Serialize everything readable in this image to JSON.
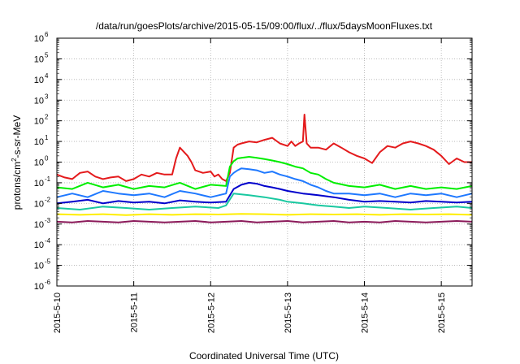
{
  "chart_data": {
    "type": "line",
    "title": "/data/run/goesPlots/archive/2015-05-15/09:00/flux/../flux/5daysMoonFluxes.txt",
    "xlabel": "Coordinated Universal Time (UTC)",
    "ylabel": {
      "base": "protons/cm",
      "sup": "2",
      "rest": "-s-sr-MeV"
    },
    "x_unit": "days since 2015-5-10",
    "xlim": [
      0,
      5.4
    ],
    "ylim_exponent": [
      -6,
      6
    ],
    "y_scale": "log",
    "grid": true,
    "x_ticks": [
      {
        "value": 0,
        "label": "2015-5-10"
      },
      {
        "value": 1,
        "label": "2015-5-11"
      },
      {
        "value": 2,
        "label": "2015-5-12"
      },
      {
        "value": 3,
        "label": "2015-5-13"
      },
      {
        "value": 4,
        "label": "2015-5-14"
      },
      {
        "value": 5,
        "label": "2015-5-15"
      }
    ],
    "y_ticks": [
      {
        "exp": -6,
        "label": "10",
        "sup": "-6"
      },
      {
        "exp": -5,
        "label": "10",
        "sup": "-5"
      },
      {
        "exp": -4,
        "label": "10",
        "sup": "-4"
      },
      {
        "exp": -3,
        "label": "10",
        "sup": "-3"
      },
      {
        "exp": -2,
        "label": "10",
        "sup": "-2"
      },
      {
        "exp": -1,
        "label": "10",
        "sup": "-1"
      },
      {
        "exp": 0,
        "label": "10",
        "sup": "0"
      },
      {
        "exp": 1,
        "label": "10",
        "sup": "1"
      },
      {
        "exp": 2,
        "label": "10",
        "sup": "2"
      },
      {
        "exp": 3,
        "label": "10",
        "sup": "3"
      },
      {
        "exp": 4,
        "label": "10",
        "sup": "4"
      },
      {
        "exp": 5,
        "label": "10",
        "sup": "5"
      },
      {
        "exp": 6,
        "label": "10",
        "sup": "6"
      }
    ],
    "series": [
      {
        "color": "#e41a1c",
        "x": [
          0,
          0.1,
          0.2,
          0.3,
          0.4,
          0.5,
          0.6,
          0.7,
          0.8,
          0.9,
          1.0,
          1.1,
          1.2,
          1.3,
          1.4,
          1.5,
          1.55,
          1.6,
          1.7,
          1.75,
          1.8,
          1.9,
          2.0,
          2.05,
          2.1,
          2.15,
          2.2,
          2.25,
          2.3,
          2.35,
          2.4,
          2.5,
          2.6,
          2.7,
          2.8,
          2.9,
          3.0,
          3.05,
          3.1,
          3.15,
          3.2,
          3.22,
          3.25,
          3.28,
          3.3,
          3.4,
          3.5,
          3.6,
          3.7,
          3.8,
          3.9,
          4.0,
          4.1,
          4.2,
          4.3,
          4.4,
          4.5,
          4.6,
          4.7,
          4.8,
          4.9,
          5.0,
          5.1,
          5.2,
          5.3,
          5.4
        ],
        "y": [
          0.25,
          0.18,
          0.15,
          0.3,
          0.35,
          0.2,
          0.15,
          0.18,
          0.2,
          0.12,
          0.15,
          0.25,
          0.2,
          0.3,
          0.25,
          0.25,
          1.5,
          5,
          2,
          1,
          0.4,
          0.3,
          0.35,
          0.2,
          0.25,
          0.15,
          0.12,
          0.3,
          5,
          7,
          8,
          10,
          9,
          12,
          15,
          8,
          6,
          10,
          6,
          8,
          10,
          200,
          8,
          6,
          5,
          5,
          4,
          8,
          5,
          3,
          2,
          1.5,
          0.9,
          3,
          6,
          5,
          8,
          10,
          8,
          6,
          4,
          2,
          0.8,
          1.5,
          1,
          1
        ]
      },
      {
        "color": "#00ee00",
        "x": [
          0,
          0.2,
          0.4,
          0.6,
          0.8,
          1.0,
          1.2,
          1.4,
          1.6,
          1.8,
          2.0,
          2.2,
          2.25,
          2.3,
          2.35,
          2.4,
          2.5,
          2.6,
          2.7,
          2.8,
          2.9,
          3.0,
          3.1,
          3.2,
          3.3,
          3.4,
          3.5,
          3.6,
          3.8,
          4.0,
          4.2,
          4.4,
          4.6,
          4.8,
          5.0,
          5.2,
          5.4
        ],
        "y": [
          0.06,
          0.05,
          0.1,
          0.06,
          0.08,
          0.05,
          0.07,
          0.06,
          0.1,
          0.05,
          0.08,
          0.07,
          0.6,
          1.1,
          1.5,
          1.6,
          1.8,
          1.6,
          1.4,
          1.2,
          1.0,
          0.8,
          0.6,
          0.5,
          0.3,
          0.25,
          0.15,
          0.1,
          0.07,
          0.06,
          0.08,
          0.05,
          0.07,
          0.05,
          0.06,
          0.05,
          0.07
        ]
      },
      {
        "color": "#1e78ff",
        "x": [
          0,
          0.2,
          0.4,
          0.6,
          0.8,
          1.0,
          1.2,
          1.4,
          1.6,
          1.8,
          2.0,
          2.2,
          2.25,
          2.3,
          2.35,
          2.4,
          2.5,
          2.6,
          2.7,
          2.8,
          2.9,
          3.0,
          3.1,
          3.2,
          3.3,
          3.4,
          3.5,
          3.6,
          3.8,
          4.0,
          4.2,
          4.4,
          4.6,
          4.8,
          5.0,
          5.2,
          5.4
        ],
        "y": [
          0.02,
          0.03,
          0.02,
          0.04,
          0.03,
          0.025,
          0.03,
          0.02,
          0.04,
          0.03,
          0.02,
          0.03,
          0.2,
          0.3,
          0.4,
          0.5,
          0.45,
          0.4,
          0.3,
          0.35,
          0.25,
          0.2,
          0.15,
          0.12,
          0.08,
          0.06,
          0.04,
          0.03,
          0.03,
          0.025,
          0.03,
          0.02,
          0.03,
          0.025,
          0.03,
          0.02,
          0.03
        ]
      },
      {
        "color": "#0000cc",
        "x": [
          0,
          0.2,
          0.4,
          0.6,
          0.8,
          1.0,
          1.2,
          1.4,
          1.6,
          1.8,
          2.0,
          2.2,
          2.3,
          2.4,
          2.5,
          2.6,
          2.7,
          2.8,
          2.9,
          3.0,
          3.2,
          3.4,
          3.6,
          3.8,
          4.0,
          4.2,
          4.4,
          4.6,
          4.8,
          5.0,
          5.2,
          5.4
        ],
        "y": [
          0.01,
          0.012,
          0.015,
          0.01,
          0.013,
          0.011,
          0.012,
          0.01,
          0.014,
          0.012,
          0.011,
          0.012,
          0.05,
          0.08,
          0.1,
          0.09,
          0.07,
          0.06,
          0.05,
          0.04,
          0.03,
          0.025,
          0.02,
          0.015,
          0.012,
          0.013,
          0.012,
          0.011,
          0.013,
          0.012,
          0.011,
          0.012
        ]
      },
      {
        "color": "#19c8a0",
        "x": [
          0,
          0.3,
          0.6,
          0.9,
          1.2,
          1.5,
          1.8,
          2.1,
          2.2,
          2.3,
          2.5,
          2.7,
          2.9,
          3.0,
          3.2,
          3.4,
          3.6,
          3.8,
          4.0,
          4.3,
          4.6,
          4.9,
          5.2,
          5.4
        ],
        "y": [
          0.006,
          0.005,
          0.007,
          0.006,
          0.005,
          0.006,
          0.007,
          0.006,
          0.008,
          0.03,
          0.025,
          0.02,
          0.015,
          0.012,
          0.01,
          0.008,
          0.007,
          0.006,
          0.007,
          0.006,
          0.005,
          0.006,
          0.007,
          0.006
        ]
      },
      {
        "color": "#ffee00",
        "x": [
          0,
          0.3,
          0.6,
          0.9,
          1.2,
          1.5,
          1.8,
          2.1,
          2.4,
          2.7,
          3.0,
          3.3,
          3.6,
          3.9,
          4.2,
          4.5,
          4.8,
          5.1,
          5.4
        ],
        "y": [
          0.003,
          0.0028,
          0.003,
          0.0027,
          0.003,
          0.0028,
          0.003,
          0.0029,
          0.0031,
          0.003,
          0.0028,
          0.003,
          0.0029,
          0.003,
          0.0028,
          0.003,
          0.0029,
          0.003,
          0.0028
        ]
      },
      {
        "color": "#8b1a5a",
        "x": [
          0,
          0.2,
          0.4,
          0.6,
          0.8,
          1.0,
          1.2,
          1.4,
          1.6,
          1.8,
          2.0,
          2.2,
          2.4,
          2.6,
          2.8,
          3.0,
          3.2,
          3.4,
          3.6,
          3.8,
          4.0,
          4.2,
          4.4,
          4.6,
          4.8,
          5.0,
          5.2,
          5.4
        ],
        "y": [
          0.0013,
          0.0012,
          0.0014,
          0.0013,
          0.0012,
          0.0014,
          0.0013,
          0.0012,
          0.0013,
          0.0014,
          0.0012,
          0.0013,
          0.0014,
          0.0012,
          0.0013,
          0.0014,
          0.0012,
          0.0013,
          0.0014,
          0.0012,
          0.0013,
          0.0012,
          0.0014,
          0.0013,
          0.0012,
          0.0013,
          0.0014,
          0.0013
        ]
      }
    ]
  }
}
